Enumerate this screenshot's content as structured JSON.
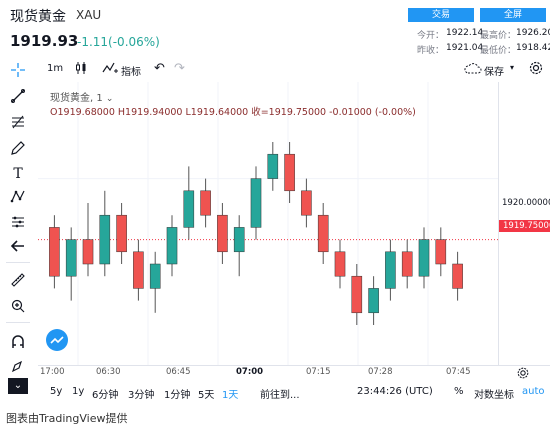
{
  "header": {
    "title": "现货黄金",
    "symbol": "XAU",
    "price": "1919.93",
    "change": "-1.11(-0.06%)",
    "trade_button": "交易",
    "fullscreen_button": "全屏",
    "stats": {
      "today_open_label": "今开：",
      "today_open": "1922.14",
      "high_label": "最高价：",
      "high": "1926.20",
      "prev_close_label": "昨收：",
      "prev_close": "1921.04",
      "low_label": "最低价：",
      "low": "1918.42"
    }
  },
  "toolbar": {
    "interval": "1m",
    "indicators": "指标",
    "save": "保存"
  },
  "legend": {
    "name": "现货黄金, 1",
    "ohlc": "O1919.68000   H1919.94000   L1919.64000   收=1919.75000   -0.01000 (-0.00%)"
  },
  "price_axis": {
    "label_1920": "1920.00000",
    "current_label": "1919.75000"
  },
  "time_axis": [
    "17:00",
    "06:30",
    "06:45",
    "07:00",
    "07:15",
    "07:28",
    "07:45"
  ],
  "bottom": {
    "ranges": [
      "5y",
      "1y",
      "6分钟",
      "3分钟",
      "1分钟",
      "5天",
      "1天"
    ],
    "goto": "前往到...",
    "clock": "23:44:26 (UTC)",
    "percent": "%",
    "log": "对数坐标",
    "auto": "auto"
  },
  "footer": "图表由TradingView提供",
  "colors": {
    "up": "#26a69a",
    "down": "#ef5350",
    "accent": "#2196f3",
    "current_line": "#f23645"
  },
  "chart_data": {
    "type": "candlestick",
    "y_axis_tick": 1920.0,
    "current_price": 1919.75,
    "candles": [
      {
        "o": 1919.8,
        "c": 1919.6,
        "h": 1919.85,
        "l": 1919.55
      },
      {
        "o": 1919.6,
        "c": 1919.75,
        "h": 1919.8,
        "l": 1919.5
      },
      {
        "o": 1919.75,
        "c": 1919.65,
        "h": 1919.9,
        "l": 1919.6
      },
      {
        "o": 1919.65,
        "c": 1919.85,
        "h": 1919.95,
        "l": 1919.6
      },
      {
        "o": 1919.85,
        "c": 1919.7,
        "h": 1919.9,
        "l": 1919.65
      },
      {
        "o": 1919.7,
        "c": 1919.55,
        "h": 1919.75,
        "l": 1919.5
      },
      {
        "o": 1919.55,
        "c": 1919.65,
        "h": 1919.7,
        "l": 1919.45
      },
      {
        "o": 1919.65,
        "c": 1919.8,
        "h": 1919.85,
        "l": 1919.6
      },
      {
        "o": 1919.8,
        "c": 1919.95,
        "h": 1920.05,
        "l": 1919.75
      },
      {
        "o": 1919.95,
        "c": 1919.85,
        "h": 1920.0,
        "l": 1919.8
      },
      {
        "o": 1919.85,
        "c": 1919.7,
        "h": 1919.9,
        "l": 1919.65
      },
      {
        "o": 1919.7,
        "c": 1919.8,
        "h": 1919.85,
        "l": 1919.6
      },
      {
        "o": 1919.8,
        "c": 1920.0,
        "h": 1920.05,
        "l": 1919.75
      },
      {
        "o": 1920.0,
        "c": 1920.1,
        "h": 1920.15,
        "l": 1919.95
      },
      {
        "o": 1920.1,
        "c": 1919.95,
        "h": 1920.15,
        "l": 1919.9
      },
      {
        "o": 1919.95,
        "c": 1919.85,
        "h": 1920.0,
        "l": 1919.8
      },
      {
        "o": 1919.85,
        "c": 1919.7,
        "h": 1919.9,
        "l": 1919.65
      },
      {
        "o": 1919.7,
        "c": 1919.6,
        "h": 1919.75,
        "l": 1919.55
      },
      {
        "o": 1919.6,
        "c": 1919.45,
        "h": 1919.65,
        "l": 1919.4
      },
      {
        "o": 1919.45,
        "c": 1919.55,
        "h": 1919.6,
        "l": 1919.4
      },
      {
        "o": 1919.55,
        "c": 1919.7,
        "h": 1919.75,
        "l": 1919.5
      },
      {
        "o": 1919.7,
        "c": 1919.6,
        "h": 1919.75,
        "l": 1919.55
      },
      {
        "o": 1919.6,
        "c": 1919.75,
        "h": 1919.8,
        "l": 1919.55
      },
      {
        "o": 1919.75,
        "c": 1919.65,
        "h": 1919.8,
        "l": 1919.6
      },
      {
        "o": 1919.65,
        "c": 1919.55,
        "h": 1919.7,
        "l": 1919.5
      }
    ]
  }
}
